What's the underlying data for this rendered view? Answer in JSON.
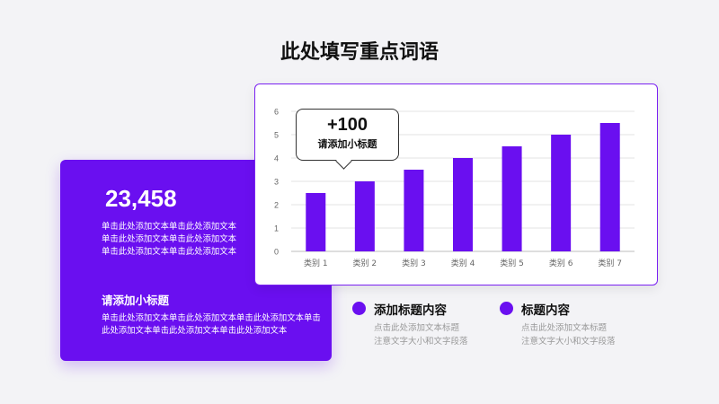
{
  "page": {
    "title": "此处填写重点词语"
  },
  "left_card": {
    "number": "23,458",
    "description": "单击此处添加文本单击此处添加文本单击此处添加文本单击此处添加文本单击此处添加文本单击此处添加文本",
    "subtitle": "请添加小标题",
    "description2": "单击此处添加文本单击此处添加文本单击此处添加文本单击此处添加文本单击此处添加文本单击此处添加文本"
  },
  "callout": {
    "value": "+100",
    "label": "请添加小标题"
  },
  "legend": [
    {
      "title": "添加标题内容",
      "line1": "点击此处添加文本标题",
      "line2": "注意文字大小和文字段落"
    },
    {
      "title": "标题内容",
      "line1": "点击此处添加文本标题",
      "line2": "注意文字大小和文字段落"
    }
  ],
  "colors": {
    "accent": "#6a0ff0"
  },
  "chart_data": {
    "type": "bar",
    "categories": [
      "类别 1",
      "类别 2",
      "类别 3",
      "类别 4",
      "类别 5",
      "类别 6",
      "类别 7"
    ],
    "values": [
      2.5,
      3.0,
      3.5,
      4.0,
      4.5,
      5.0,
      5.5
    ],
    "ylim": [
      0,
      6
    ],
    "yticks": [
      0,
      1,
      2,
      3,
      4,
      5,
      6
    ],
    "grid": true,
    "bar_color": "#6a0ff0"
  }
}
